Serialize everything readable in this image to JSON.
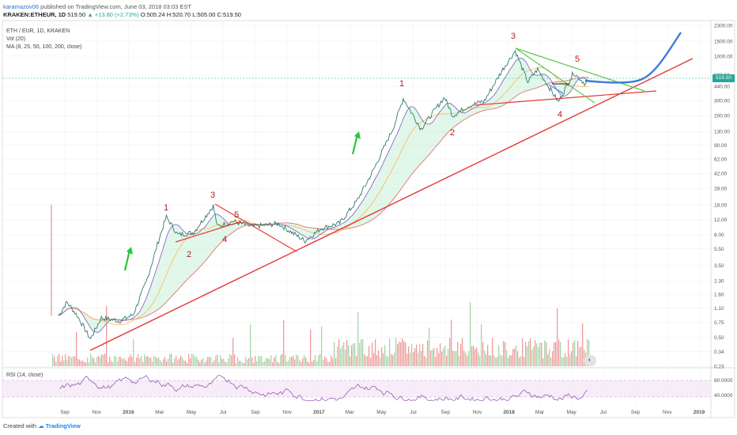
{
  "header": {
    "user": "karamazov06",
    "published_text": "published on TradingView.com, June 03, 2018 03:03 EST",
    "symbol": "KRAKEN:ETHEUR, 1D",
    "last": "519.50",
    "change": "▲ +13.80 (+2.73%)",
    "ohlc": "O:505.24 H:520.70 L:505.00 C:519.50"
  },
  "legend": {
    "pair": "ETH / EUR, 1D, KRAKEN",
    "vol": "Vol (20)",
    "ma": "MA (8, 25, 50, 100, 200, close)"
  },
  "rsi": {
    "label": "RSI (14, close)",
    "levels": [
      "80.0000",
      "40.0000"
    ]
  },
  "footer": {
    "created_with": "Created with",
    "brand": "TradingView"
  },
  "price_badge": "519.50",
  "colors": {
    "price_line": "#2e7d6a",
    "trend": "#e53935",
    "triangle": "#5ec84e",
    "projection": "#3f7bd6",
    "arrow": "#29c53a",
    "labels": "#b71c1c"
  },
  "chart_data": {
    "type": "line",
    "title": "ETH / EUR, 1D, KRAKEN",
    "y_scale": "log",
    "x_ticks": [
      "Sep",
      "Nov",
      "2016",
      "Mar",
      "May",
      "Jul",
      "Sep",
      "Nov",
      "2017",
      "Mar",
      "May",
      "Jul",
      "Sep",
      "Nov",
      "2018",
      "Mar",
      "May",
      "Jul",
      "Sep",
      "Nov",
      "2019"
    ],
    "y_ticks": [
      "2300.00",
      "1500.00",
      "1000.00",
      "600.00",
      "440.00",
      "300.00",
      "200.00",
      "130.00",
      "90.00",
      "62.00",
      "42.00",
      "28.00",
      "18.00",
      "12.00",
      "8.00",
      "5.50",
      "3.50",
      "2.30",
      "1.60",
      "1.10",
      "0.75",
      "0.50",
      "0.34",
      "0.23"
    ],
    "series": [
      {
        "name": "ETH / EUR",
        "points": [
          [
            "2015-08-20",
            0.9
          ],
          [
            "2015-09-05",
            1.3
          ],
          [
            "2015-09-25",
            0.9
          ],
          [
            "2015-10-20",
            0.48
          ],
          [
            "2015-11-10",
            0.85
          ],
          [
            "2015-12-15",
            0.78
          ],
          [
            "2016-01-10",
            0.92
          ],
          [
            "2016-02-05",
            2.3
          ],
          [
            "2016-03-01",
            7.5
          ],
          [
            "2016-03-14",
            13.0
          ],
          [
            "2016-04-05",
            8.0
          ],
          [
            "2016-05-05",
            8.5
          ],
          [
            "2016-06-12",
            17.5
          ],
          [
            "2016-06-20",
            10.0
          ],
          [
            "2016-07-20",
            11.5
          ],
          [
            "2016-08-25",
            10.0
          ],
          [
            "2016-10-15",
            10.8
          ],
          [
            "2016-12-05",
            6.8
          ],
          [
            "2017-01-05",
            9.5
          ],
          [
            "2017-02-10",
            11.0
          ],
          [
            "2017-03-15",
            20.0
          ],
          [
            "2017-04-15",
            45.0
          ],
          [
            "2017-05-25",
            150.0
          ],
          [
            "2017-06-12",
            320.0
          ],
          [
            "2017-07-16",
            140.0
          ],
          [
            "2017-08-30",
            330.0
          ],
          [
            "2017-09-15",
            200.0
          ],
          [
            "2017-10-15",
            260.0
          ],
          [
            "2017-11-15",
            300.0
          ],
          [
            "2017-12-20",
            700.0
          ],
          [
            "2018-01-13",
            1150.0
          ],
          [
            "2018-02-06",
            500.0
          ],
          [
            "2018-02-25",
            700.0
          ],
          [
            "2018-04-06",
            290.0
          ],
          [
            "2018-05-05",
            640.0
          ],
          [
            "2018-05-28",
            470.0
          ],
          [
            "2018-06-03",
            519.5
          ]
        ]
      },
      {
        "name": "",
        "points": [
          [
            "2018-06-03",
            450.0
          ],
          [
            "2018-08-15",
            430.0
          ],
          [
            "2018-10-01",
            900.0
          ],
          [
            "2018-11-15",
            1800.0
          ]
        ]
      }
    ],
    "annotations": [
      {
        "text": "1",
        "x": "2016-03-14"
      },
      {
        "text": "2",
        "x": "2016-04-25"
      },
      {
        "text": "3",
        "x": "2016-06-12"
      },
      {
        "text": "4",
        "x": "2016-06-25"
      },
      {
        "text": "5",
        "x": "2016-07-05"
      },
      {
        "text": "1",
        "x": "2017-06-12"
      },
      {
        "text": "2",
        "x": "2017-07-16"
      },
      {
        "text": "3",
        "x": "2018-01-13"
      },
      {
        "text": "4",
        "x": "2018-04-06"
      },
      {
        "text": "5",
        "x": "2018-05-05"
      }
    ],
    "volume": "bars",
    "rsi_range": [
      20,
      90
    ]
  }
}
